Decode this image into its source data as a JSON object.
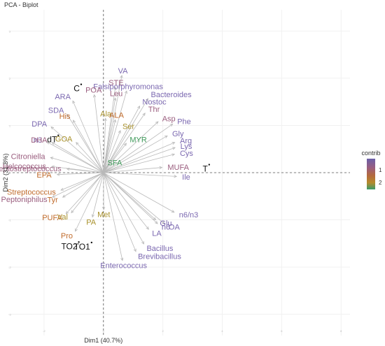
{
  "chart_data": {
    "type": "scatter",
    "title": "PCA - Biplot",
    "xlabel": "Dim1 (40.7%)",
    "ylabel": "Dim2 (31.8%)",
    "xlim": [
      -3.2,
      8.3
    ],
    "ylim": [
      -3.45,
      3.45
    ],
    "yticks": [
      -3,
      -2,
      -1,
      0,
      1,
      2,
      3
    ],
    "xticks": [
      -2,
      0,
      2,
      4,
      6,
      8
    ],
    "legend": {
      "title": "contrib",
      "ticks": [
        "1",
        "2"
      ],
      "position": "right",
      "gradient": [
        "#6a5fa8",
        "#9a5d7e",
        "#b46a3c",
        "#b58a2c",
        "#3a9a6a"
      ]
    },
    "colors": {
      "purple": "#7b68b0",
      "mauve": "#9a5d7e",
      "orange": "#c06a2a",
      "olive": "#a8902a",
      "green": "#3f9a5a"
    },
    "variables": [
      {
        "label": "VA",
        "x": 0.62,
        "y": 2.06,
        "color": "purple"
      },
      {
        "label": "STE",
        "x": 0.4,
        "y": 1.81,
        "color": "mauve"
      },
      {
        "label": "Falsiporphyromonas",
        "x": 0.78,
        "y": 1.73,
        "color": "purple"
      },
      {
        "label": "Leu",
        "x": 0.4,
        "y": 1.58,
        "color": "mauve"
      },
      {
        "label": "Bacteroides",
        "x": 1.5,
        "y": 1.57,
        "color": "purple"
      },
      {
        "label": "Nostoc",
        "x": 1.22,
        "y": 1.41,
        "color": "purple"
      },
      {
        "label": "Thr",
        "x": 1.4,
        "y": 1.26,
        "color": "mauve"
      },
      {
        "label": "Asp",
        "x": 1.84,
        "y": 1.08,
        "color": "mauve"
      },
      {
        "label": "Phe",
        "x": 2.33,
        "y": 1.03,
        "color": "purple"
      },
      {
        "label": "Gly",
        "x": 2.15,
        "y": 0.78,
        "color": "purple"
      },
      {
        "label": "Arg",
        "x": 2.4,
        "y": 0.64,
        "color": "purple"
      },
      {
        "label": "Lys",
        "x": 2.41,
        "y": 0.53,
        "color": "purple"
      },
      {
        "label": "Cys",
        "x": 2.39,
        "y": 0.39,
        "color": "purple"
      },
      {
        "label": "MUFA",
        "x": 1.97,
        "y": 0.11,
        "color": "mauve"
      },
      {
        "label": "Ile",
        "x": 2.46,
        "y": -0.08,
        "color": "purple"
      },
      {
        "label": "Ala",
        "x": 0.07,
        "y": 1.15,
        "color": "olive"
      },
      {
        "label": "ALA",
        "x": 0.4,
        "y": 1.12,
        "color": "orange"
      },
      {
        "label": "Ser",
        "x": 0.57,
        "y": 0.89,
        "color": "olive"
      },
      {
        "label": "MYR",
        "x": 0.77,
        "y": 0.62,
        "color": "green"
      },
      {
        "label": "SFA",
        "x": 0.07,
        "y": 0.12,
        "color": "green"
      },
      {
        "label": "POA",
        "x": -0.31,
        "y": 1.65,
        "color": "mauve"
      },
      {
        "label": "ARA",
        "x": -1.03,
        "y": 1.52,
        "color": "purple"
      },
      {
        "label": "SDA",
        "x": -1.23,
        "y": 1.24,
        "color": "purple"
      },
      {
        "label": "His",
        "x": -1.02,
        "y": 1.11,
        "color": "orange"
      },
      {
        "label": "DPA",
        "x": -1.76,
        "y": 0.97,
        "color": "purple"
      },
      {
        "label": "GOA",
        "x": -0.92,
        "y": 0.64,
        "color": "olive"
      },
      {
        "label": "n3",
        "x": -1.9,
        "y": 0.65,
        "color": "purple"
      },
      {
        "label": "DHA",
        "x": -1.73,
        "y": 0.64,
        "color": "mauve"
      },
      {
        "label": "Citroniella",
        "x": -1.78,
        "y": 0.32,
        "color": "mauve"
      },
      {
        "label": "Helcococcus",
        "x": -1.74,
        "y": 0.13,
        "color": "mauve"
      },
      {
        "label": "Peptostreptococcus",
        "x": -1.23,
        "y": 0.08,
        "color": "mauve"
      },
      {
        "label": "EPA",
        "x": -1.56,
        "y": -0.04,
        "color": "orange"
      },
      {
        "label": "Streptococcus",
        "x": -1.43,
        "y": -0.37,
        "color": "orange"
      },
      {
        "label": "Tyr",
        "x": -1.37,
        "y": -0.52,
        "color": "orange"
      },
      {
        "label": "Peptoniphilus",
        "x": -1.72,
        "y": -0.52,
        "color": "mauve"
      },
      {
        "label": "PUFA",
        "x": -1.26,
        "y": -0.87,
        "color": "orange"
      },
      {
        "label": "Val",
        "x": -1.08,
        "y": -0.85,
        "color": "olive"
      },
      {
        "label": "PA",
        "x": -0.37,
        "y": -0.94,
        "color": "olive"
      },
      {
        "label": "Met",
        "x": 0.01,
        "y": -0.78,
        "color": "olive"
      },
      {
        "label": "Pro",
        "x": -0.95,
        "y": -1.24,
        "color": "orange"
      },
      {
        "label": "n6/n3",
        "x": 2.38,
        "y": -0.84,
        "color": "purple"
      },
      {
        "label": "Glu",
        "x": 1.76,
        "y": -1.0,
        "color": "purple"
      },
      {
        "label": "n6",
        "x": 1.82,
        "y": -1.08,
        "color": "purple"
      },
      {
        "label": "OA",
        "x": 2.05,
        "y": -1.08,
        "color": "purple"
      },
      {
        "label": "LA",
        "x": 1.52,
        "y": -1.2,
        "color": "purple"
      },
      {
        "label": "Bacillus",
        "x": 1.36,
        "y": -1.51,
        "color": "purple"
      },
      {
        "label": "Brevibacillus",
        "x": 1.09,
        "y": -1.67,
        "color": "purple"
      },
      {
        "label": "Enterococcus",
        "x": 0.64,
        "y": -1.86,
        "color": "purple"
      }
    ],
    "individuals": [
      {
        "label": "C",
        "x": -0.75,
        "y": 1.87
      },
      {
        "label": "dT",
        "x": -1.52,
        "y": 0.79
      },
      {
        "label": "T",
        "x": 3.56,
        "y": 0.17
      },
      {
        "label": "TO2",
        "x": -0.83,
        "y": -1.47
      },
      {
        "label": "TO1",
        "x": -0.4,
        "y": -1.48
      }
    ]
  }
}
